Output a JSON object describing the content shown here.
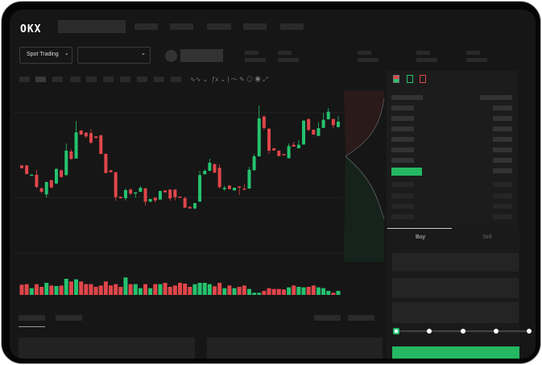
{
  "header": {
    "logo": "OKX"
  },
  "market": {
    "mode_label": "Spot Trading"
  },
  "trade": {
    "tabs": [
      {
        "label": "Buy",
        "active": true
      },
      {
        "label": "Sell",
        "active": false
      }
    ],
    "leverage_steps": 5,
    "selected_step": 0
  },
  "colors": {
    "up": "#25c26e",
    "down": "#e0464a",
    "background": "#161616",
    "panel": "#1c1c1c"
  },
  "chart": {
    "candles": [
      [
        166.7,
        167.3,
        162.7,
        163.3
      ],
      [
        166.7,
        167,
        155.5,
        156
      ],
      [
        154,
        155.5,
        153.5,
        155.3
      ],
      [
        155,
        161.3,
        138.3,
        140
      ],
      [
        138.3,
        139.3,
        132.3,
        134
      ],
      [
        130.7,
        146.7,
        126.7,
        146
      ],
      [
        148.3,
        149,
        138.5,
        139.3
      ],
      [
        144.3,
        163.3,
        143.5,
        162.3
      ],
      [
        160.7,
        161.5,
        151.5,
        152.3
      ],
      [
        154.7,
        194,
        154,
        185
      ],
      [
        184,
        186.7,
        174,
        174.7
      ],
      [
        175.3,
        221.7,
        175,
        207.7
      ],
      [
        210,
        210.5,
        204.5,
        205
      ],
      [
        207.3,
        208,
        200.5,
        202.7
      ],
      [
        206.7,
        211.7,
        193.3,
        195
      ],
      [
        202.7,
        203,
        200.3,
        200.7
      ],
      [
        204,
        205,
        180.5,
        181
      ],
      [
        181,
        181.5,
        157,
        157.3
      ],
      [
        160.7,
        161,
        158,
        158.3
      ],
      [
        158.3,
        158.5,
        122.7,
        127.3
      ],
      [
        127.7,
        128,
        125.5,
        126
      ],
      [
        126,
        138.3,
        123.3,
        136
      ],
      [
        136.7,
        138.3,
        130,
        131.7
      ],
      [
        131.7,
        133.5,
        126.7,
        133.3
      ],
      [
        134,
        140.7,
        133.5,
        139
      ],
      [
        138.3,
        138.5,
        117.3,
        121.7
      ],
      [
        121.7,
        125.3,
        121.3,
        125
      ],
      [
        126.7,
        127,
        120.7,
        123.3
      ],
      [
        124.3,
        135.3,
        124,
        135
      ],
      [
        135.7,
        136,
        133,
        133.3
      ],
      [
        136.7,
        137,
        122.7,
        125.7
      ],
      [
        136.7,
        137,
        123.3,
        127.3
      ],
      [
        128,
        128.3,
        126.7,
        127
      ],
      [
        126,
        128,
        114,
        114.3
      ],
      [
        115.3,
        115.7,
        113,
        113.3
      ],
      [
        113.3,
        120.3,
        112.3,
        120
      ],
      [
        122,
        160,
        120.7,
        154.7
      ],
      [
        155.7,
        161.7,
        155.3,
        160
      ],
      [
        160,
        175,
        159.7,
        170
      ],
      [
        168.3,
        169,
        157.3,
        157.7
      ],
      [
        163.7,
        168.3,
        138,
        139.7
      ],
      [
        137.3,
        141.7,
        135,
        139
      ],
      [
        141.7,
        142,
        137,
        137.3
      ],
      [
        135.7,
        139.3,
        135.5,
        139
      ],
      [
        140.7,
        141,
        130,
        139.3
      ],
      [
        138,
        143.3,
        136.5,
        136.7
      ],
      [
        138,
        165,
        137.7,
        161.3
      ],
      [
        160.7,
        180.7,
        160.3,
        178
      ],
      [
        178,
        241,
        177.7,
        225
      ],
      [
        227.3,
        229,
        210.7,
        213.3
      ],
      [
        212.3,
        212.7,
        181,
        185
      ],
      [
        188,
        188.3,
        185,
        185.3
      ],
      [
        185,
        185.3,
        178,
        178.3
      ],
      [
        180.7,
        181,
        179,
        179.3
      ],
      [
        175.7,
        194,
        175.3,
        190.7
      ],
      [
        192.3,
        196,
        189.7,
        190
      ],
      [
        188,
        198.3,
        187.7,
        192.3
      ],
      [
        192.7,
        222.7,
        192.3,
        222.3
      ],
      [
        224.3,
        224.7,
        209.3,
        210.7
      ],
      [
        211,
        211.3,
        204.7,
        205
      ],
      [
        203.3,
        220,
        203,
        213
      ],
      [
        213.3,
        231.7,
        213,
        223.3
      ],
      [
        224,
        238,
        223.7,
        233.3
      ],
      [
        224.3,
        224.7,
        212.7,
        216.7
      ],
      [
        214.3,
        228.3,
        214,
        221
      ]
    ],
    "volumes": [
      38,
      40,
      25,
      40,
      30,
      45,
      35,
      33,
      35,
      60,
      50,
      58,
      50,
      40,
      40,
      30,
      35,
      50,
      35,
      40,
      30,
      65,
      40,
      40,
      25,
      40,
      25,
      40,
      40,
      45,
      30,
      35,
      45,
      42,
      30,
      40,
      45,
      45,
      40,
      32,
      45,
      25,
      35,
      25,
      30,
      35,
      22,
      8,
      8,
      15,
      25,
      22,
      22,
      20,
      28,
      35,
      30,
      28,
      30,
      35,
      28,
      25,
      15,
      8,
      15
    ]
  }
}
